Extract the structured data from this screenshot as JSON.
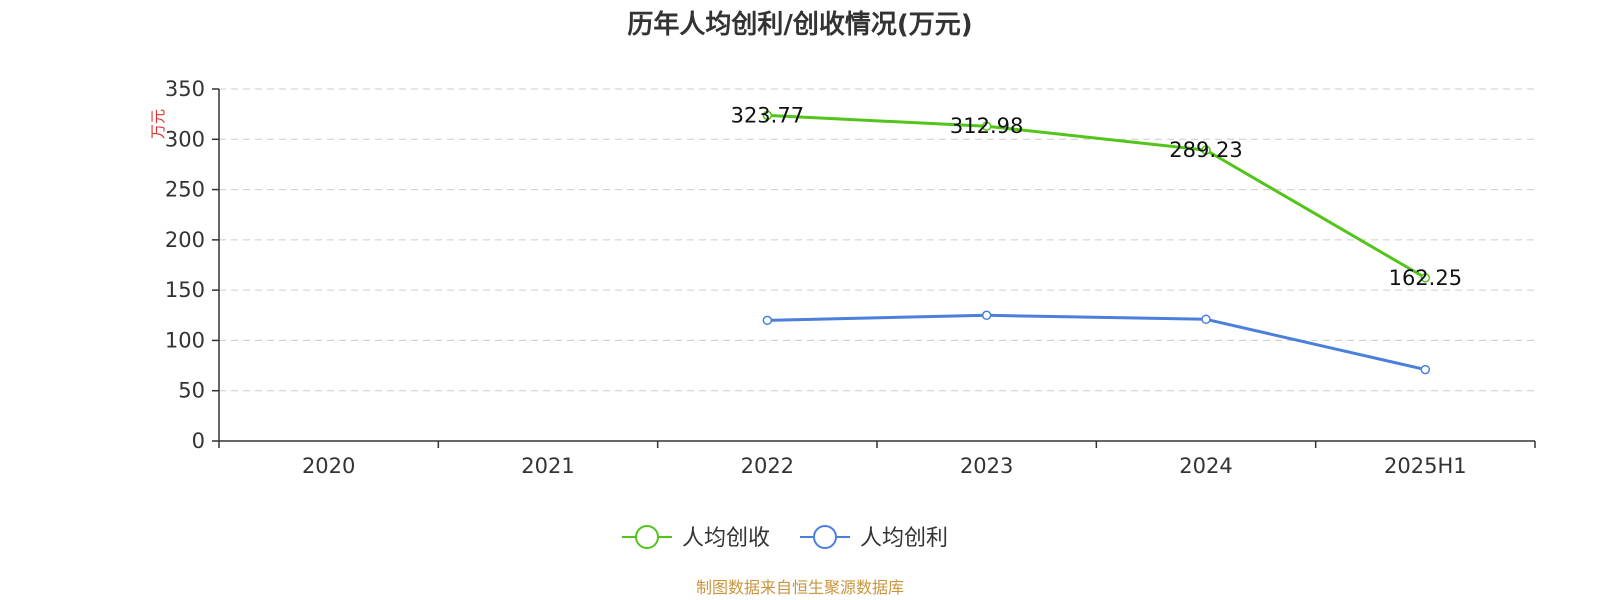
{
  "chart_data": {
    "type": "line",
    "title": "历年人均创利/创收情况(万元)",
    "ylabel": "万元",
    "categories": [
      "2020",
      "2021",
      "2022",
      "2023",
      "2024",
      "2025H1"
    ],
    "y_ticks": [
      "0",
      "50",
      "100",
      "150",
      "200",
      "250",
      "300",
      "350"
    ],
    "ylim": [
      0,
      350
    ],
    "grid": true,
    "legend_position": "bottom",
    "series": [
      {
        "name": "人均创收",
        "color": "#52c41a",
        "values": [
          null,
          null,
          323.77,
          312.98,
          289.23,
          162.25
        ],
        "labels": [
          "",
          "",
          "323.77",
          "312.98",
          "289.23",
          "162.25"
        ]
      },
      {
        "name": "人均创利",
        "color": "#4a7fdc",
        "values": [
          null,
          null,
          120,
          125,
          121,
          71
        ],
        "labels": [
          "",
          "",
          "",
          "",
          "",
          ""
        ]
      }
    ]
  },
  "source_text": "制图数据来自恒生聚源数据库",
  "colors": {
    "source": "#c8963e",
    "ylabel": "#e03030"
  }
}
